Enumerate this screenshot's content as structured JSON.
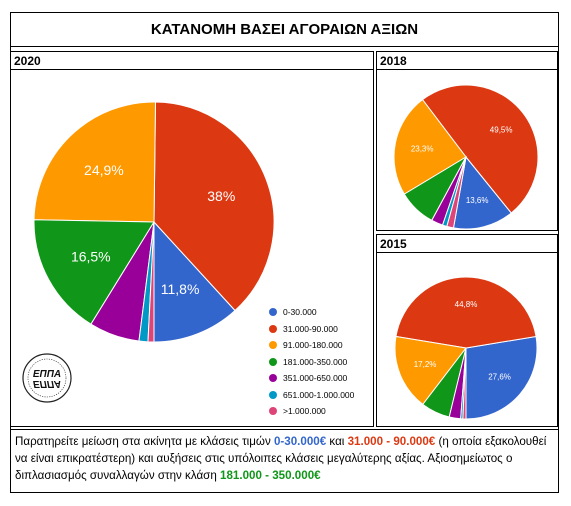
{
  "title": "ΚΑΤΑΝΟΜΗ ΒΑΣΕΙ ΑΓΟΡΑΙΩΝ ΑΞΙΩΝ",
  "logo_text": "ΕΠΠΑ",
  "legend": [
    "0-30.000",
    "31.000-90.000",
    "91.000-180.000",
    "181.000-350.000",
    "351.000-650.000",
    "651.000-1.000.000",
    ">1.000.000"
  ],
  "colors": [
    "#3366cc",
    "#dc3912",
    "#ff9900",
    "#109618",
    "#990099",
    "#0099c6",
    "#dd4477"
  ],
  "chart_data": [
    {
      "type": "pie",
      "title": "2020",
      "categories": [
        "0-30.000",
        "31.000-90.000",
        "91.000-180.000",
        "181.000-350.000",
        "351.000-650.000",
        "651.000-1.000.000",
        ">1.000.000"
      ],
      "values": [
        11.8,
        38,
        24.9,
        16.5,
        6.8,
        1.2,
        0.8
      ],
      "data_labels": [
        "11,8%",
        "38%",
        "24,9%",
        "16,5%",
        "",
        "",
        ""
      ]
    },
    {
      "type": "pie",
      "title": "2018",
      "categories": [
        "0-30.000",
        "31.000-90.000",
        "91.000-180.000",
        "181.000-350.000",
        "351.000-650.000",
        "651.000-1.000.000",
        ">1.000.000"
      ],
      "values": [
        13.6,
        49.5,
        23.3,
        8.5,
        2.6,
        1.0,
        1.5
      ],
      "data_labels": [
        "13,6%",
        "49,5%",
        "23,3%",
        "",
        "",
        "",
        ""
      ]
    },
    {
      "type": "pie",
      "title": "2015",
      "categories": [
        "0-30.000",
        "31.000-90.000",
        "91.000-180.000",
        "181.000-350.000",
        "351.000-650.000",
        "651.000-1.000.000",
        ">1.000.000"
      ],
      "values": [
        27.6,
        44.8,
        17.2,
        6.6,
        2.6,
        0.5,
        0.7
      ],
      "data_labels": [
        "27,6%",
        "44,8%",
        "17,2%",
        "",
        "",
        "",
        ""
      ]
    }
  ],
  "note": {
    "part1": "Παρατηρείτε μείωση στα ακίνητα με κλάσεις τιμών ",
    "range1": "0-30.000€",
    "part2": " και ",
    "range2": "31.000 - 90.000€",
    "part3": " (η οποία εξακολουθεί να είναι επικρατέστερη) και αυξήσεις στις υπόλοιπες κλάσεις μεγαλύτερης αξίας. Αξιοσημείωτος ο διπλασιασμός συναλλαγών στην κλάση ",
    "range3": "181.000 - 350.000€"
  }
}
